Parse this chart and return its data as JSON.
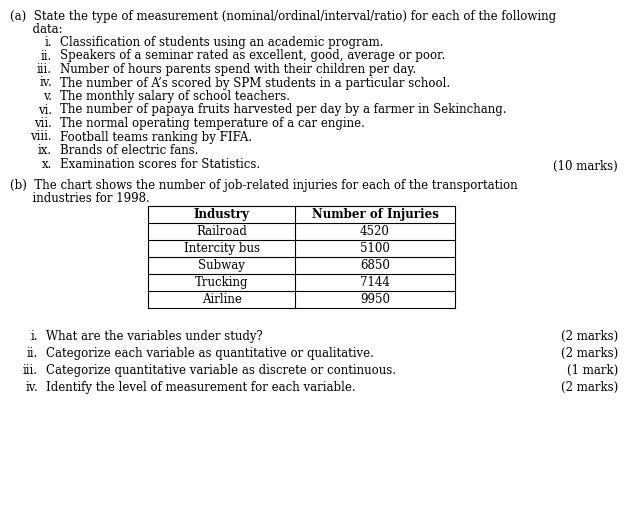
{
  "bg_color": "#ffffff",
  "text_color": "#000000",
  "part_a_line1": "(a)  State the type of measurement (nominal/ordinal/interval/ratio) for each of the following",
  "part_a_line2": "      data:",
  "part_a_items": [
    [
      "i.",
      "Classification of students using an academic program."
    ],
    [
      "ii.",
      "Speakers of a seminar rated as excellent, good, average or poor."
    ],
    [
      "iii.",
      "Number of hours parents spend with their children per day."
    ],
    [
      "iv.",
      "The number of A’s scored by SPM students in a particular school."
    ],
    [
      "v.",
      "The monthly salary of school teachers."
    ],
    [
      "vi.",
      "The number of papaya fruits harvested per day by a farmer in Sekinchang."
    ],
    [
      "vii.",
      "The normal operating temperature of a car engine."
    ],
    [
      "viii.",
      "Football teams ranking by FIFA."
    ],
    [
      "ix.",
      "Brands of electric fans."
    ],
    [
      "x.",
      "Examination scores for Statistics."
    ]
  ],
  "marks_a": "(10 marks)",
  "part_b_line1": "(b)  The chart shows the number of job-related injuries for each of the transportation",
  "part_b_line2": "      industries for 1998.",
  "table_headers": [
    "Industry",
    "Number of Injuries"
  ],
  "table_rows": [
    [
      "Railroad",
      "4520"
    ],
    [
      "Intercity bus",
      "5100"
    ],
    [
      "Subway",
      "6850"
    ],
    [
      "Trucking",
      "7144"
    ],
    [
      "Airline",
      "9950"
    ]
  ],
  "part_b_items": [
    [
      "i.",
      "What are the variables under study?",
      "(2 marks)"
    ],
    [
      "ii.",
      "Categorize each variable as quantitative or qualitative.",
      "(2 marks)"
    ],
    [
      "iii.",
      "Categorize quantitative variable as discrete or continuous.",
      "(1 mark)"
    ],
    [
      "iv.",
      "Identify the level of measurement for each variable.",
      "(2 marks)"
    ]
  ],
  "font_size": 8.5,
  "font_family": "DejaVu Serif"
}
